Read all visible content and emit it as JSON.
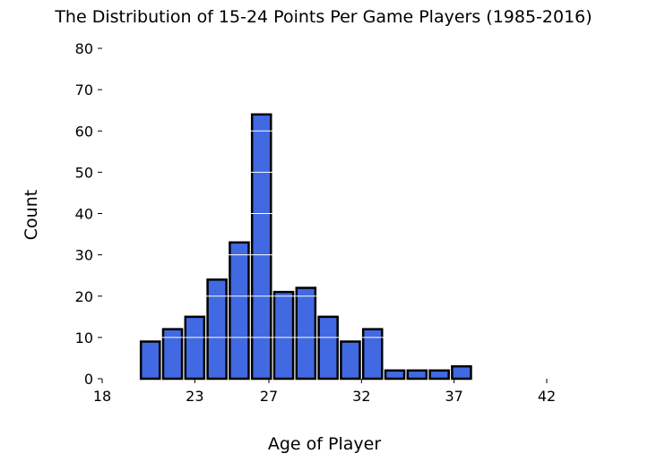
{
  "chart_data": {
    "type": "bar",
    "title": "The Distribution of 15-24 Points Per Game Players (1985-2016)",
    "xlabel": "Age of Player",
    "ylabel": "Count",
    "xlim": [
      18,
      42
    ],
    "ylim": [
      0,
      80
    ],
    "xticks": [
      18,
      23,
      27,
      32,
      37,
      42
    ],
    "xtick_labels": [
      "18",
      "23",
      "27",
      "32",
      "37",
      "42"
    ],
    "yticks": [
      0,
      10,
      20,
      30,
      40,
      50,
      60,
      70,
      80
    ],
    "ytick_labels": [
      "0",
      "10",
      "20",
      "30",
      "40",
      "50",
      "60",
      "70",
      "80"
    ],
    "grid": "horizontal, white, drawn over bars",
    "legend": "none",
    "bin_width": 1.2,
    "bar_width_fraction": 0.85,
    "bins": [
      {
        "start": 20.0,
        "value": 9
      },
      {
        "start": 21.2,
        "value": 12
      },
      {
        "start": 22.4,
        "value": 15
      },
      {
        "start": 23.6,
        "value": 24
      },
      {
        "start": 24.8,
        "value": 33
      },
      {
        "start": 26.0,
        "value": 64
      },
      {
        "start": 27.2,
        "value": 21
      },
      {
        "start": 28.4,
        "value": 22
      },
      {
        "start": 29.6,
        "value": 15
      },
      {
        "start": 30.8,
        "value": 9
      },
      {
        "start": 32.0,
        "value": 12
      },
      {
        "start": 33.2,
        "value": 2
      },
      {
        "start": 34.4,
        "value": 2
      },
      {
        "start": 35.6,
        "value": 2
      },
      {
        "start": 36.8,
        "value": 3
      }
    ],
    "colors": {
      "bar_fill": "#4169E1",
      "bar_edge": "#000000",
      "grid": "#ffffff"
    }
  }
}
